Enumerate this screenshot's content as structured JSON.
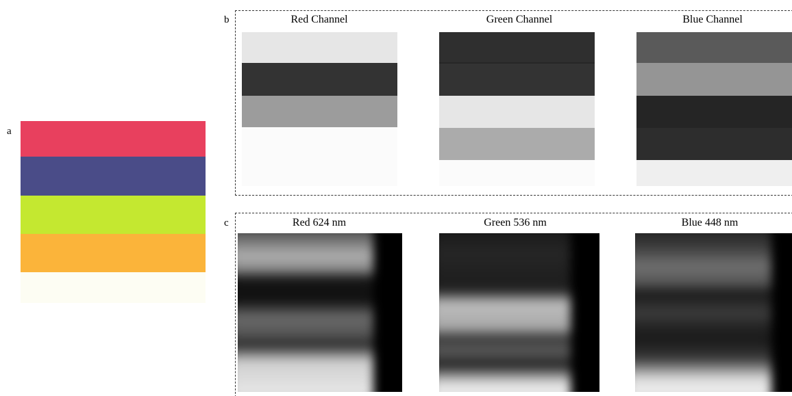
{
  "panel_a": {
    "label": "a"
  },
  "panel_b": {
    "label": "b",
    "titles": [
      "Red Channel",
      "Green Channel",
      "Blue Channel"
    ]
  },
  "panel_c": {
    "label": "c",
    "titles": [
      "Red 624 nm",
      "Green 536 nm",
      "Blue 448 nm"
    ]
  }
}
